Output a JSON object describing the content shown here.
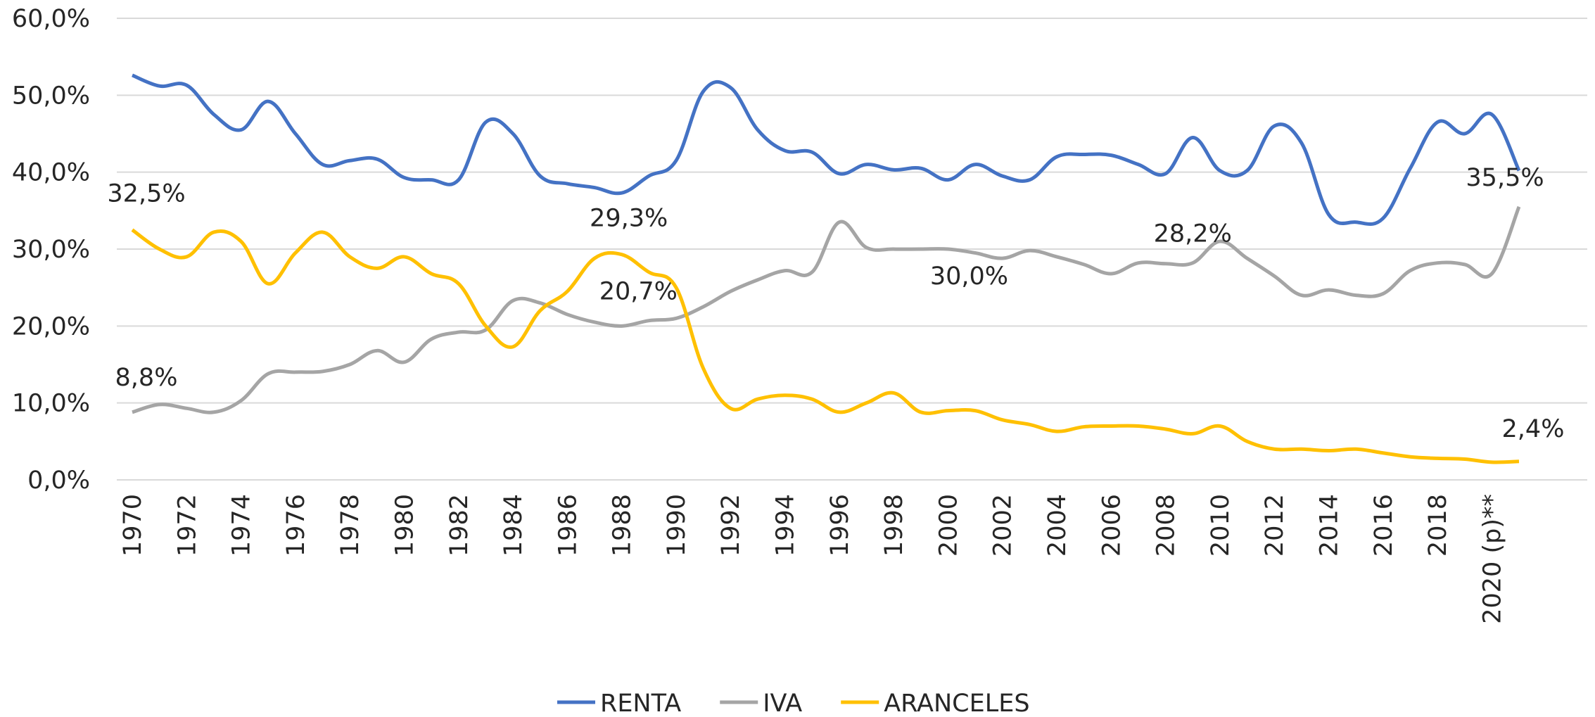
{
  "chart_data": {
    "type": "line",
    "categories": [
      "1970",
      null,
      "1972",
      null,
      "1974",
      null,
      "1976",
      null,
      "1978",
      null,
      "1980",
      null,
      "1982",
      null,
      "1984",
      null,
      "1986",
      null,
      "1988",
      null,
      "1990",
      null,
      "1992",
      null,
      "1994",
      null,
      "1996",
      null,
      "1998",
      null,
      "2000",
      null,
      "2002",
      null,
      "2004",
      null,
      "2006",
      null,
      "2008",
      null,
      "2010",
      null,
      "2012",
      null,
      "2014",
      null,
      "2016",
      null,
      "2018",
      null,
      "2020 (p)**",
      null
    ],
    "series": [
      {
        "name": "RENTA",
        "color": "#4472c4",
        "values": [
          52.6,
          51.2,
          51.3,
          47.5,
          45.5,
          49.2,
          45.0,
          41.0,
          41.5,
          41.7,
          39.3,
          39.0,
          39.0,
          46.5,
          45.0,
          39.5,
          38.5,
          38.0,
          37.3,
          39.5,
          41.5,
          50.5,
          51.0,
          45.5,
          42.8,
          42.6,
          39.8,
          41.0,
          40.3,
          40.5,
          39.0,
          41.0,
          39.5,
          39.0,
          42.0,
          42.3,
          42.2,
          41.0,
          39.8,
          44.5,
          40.2,
          40.2,
          46.0,
          43.8,
          34.5,
          33.5,
          34.0,
          40.5,
          46.5,
          45.0,
          47.5,
          40.2
        ]
      },
      {
        "name": "IVA",
        "color": "#a5a5a5",
        "values": [
          8.8,
          9.8,
          9.3,
          8.8,
          10.3,
          13.8,
          14.0,
          14.1,
          15.0,
          16.8,
          15.3,
          18.3,
          19.2,
          19.5,
          23.3,
          23.0,
          21.5,
          20.5,
          20.0,
          20.7,
          21.0,
          22.5,
          24.5,
          26.0,
          27.2,
          27.0,
          33.5,
          30.2,
          30.0,
          30.0,
          30.0,
          29.5,
          28.8,
          29.8,
          29.0,
          28.0,
          26.8,
          28.2,
          28.1,
          28.2,
          31.0,
          28.8,
          26.5,
          24.0,
          24.7,
          24.0,
          24.2,
          27.2,
          28.2,
          28.0,
          26.8,
          35.5
        ],
        "value_labels": [
          "8,8%",
          null,
          null,
          null,
          null,
          null,
          null,
          null,
          null,
          null,
          null,
          null,
          null,
          null,
          null,
          null,
          null,
          null,
          null,
          "20,7%",
          null,
          null,
          null,
          null,
          null,
          null,
          null,
          null,
          null,
          null,
          "30,0%",
          null,
          null,
          null,
          null,
          null,
          null,
          null,
          null,
          "28,2%",
          null,
          null,
          null,
          null,
          null,
          null,
          null,
          null,
          null,
          null,
          null,
          "35,5%"
        ]
      },
      {
        "name": "ARANCELES",
        "color": "#ffc000",
        "values": [
          32.5,
          30.0,
          29.0,
          32.2,
          31.0,
          25.5,
          29.5,
          32.2,
          29.0,
          27.5,
          29.0,
          26.8,
          25.5,
          20.0,
          17.3,
          22.0,
          24.5,
          28.8,
          29.3,
          27.0,
          25.0,
          14.5,
          9.3,
          10.5,
          11.0,
          10.5,
          8.8,
          10.0,
          11.3,
          8.8,
          9.0,
          9.0,
          7.8,
          7.2,
          6.3,
          6.9,
          7.0,
          7.0,
          6.6,
          6.0,
          7.0,
          5.0,
          4.0,
          4.0,
          3.8,
          4.0,
          3.5,
          3.0,
          2.8,
          2.7,
          2.3,
          2.4
        ],
        "value_labels": [
          "32,5%",
          null,
          null,
          null,
          null,
          null,
          null,
          null,
          null,
          null,
          null,
          null,
          null,
          null,
          null,
          null,
          null,
          null,
          "29,3%",
          null,
          null,
          null,
          null,
          null,
          null,
          null,
          null,
          null,
          null,
          null,
          null,
          null,
          null,
          null,
          null,
          null,
          null,
          null,
          null,
          null,
          null,
          null,
          null,
          null,
          null,
          null,
          null,
          null,
          null,
          null,
          null,
          "2,4%"
        ]
      }
    ],
    "ylim": [
      0,
      60
    ],
    "yticks": [
      {
        "value": 0,
        "label": "0,0%"
      },
      {
        "value": 10,
        "label": "10,0%"
      },
      {
        "value": 20,
        "label": "20,0%"
      },
      {
        "value": 30,
        "label": "30,0%"
      },
      {
        "value": 40,
        "label": "40,0%"
      },
      {
        "value": 50,
        "label": "50,0%"
      },
      {
        "value": 60,
        "label": "60,0%"
      }
    ],
    "grid": true,
    "legend": "bottom"
  }
}
